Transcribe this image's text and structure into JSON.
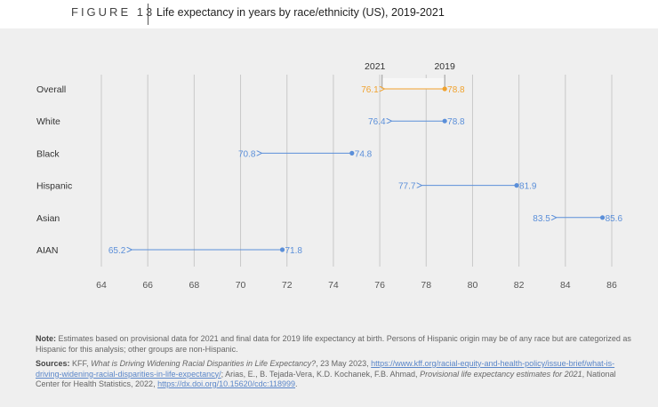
{
  "header": {
    "figure_label": "FIGURE 13",
    "title": "Life expectancy in years by race/ethnicity (US), 2019-2021"
  },
  "chart_data": {
    "type": "dumbbell",
    "title": "Life expectancy in years by race/ethnicity (US), 2019-2021",
    "xlim": [
      64,
      86
    ],
    "x_ticks": [
      "64",
      "66",
      "68",
      "70",
      "72",
      "74",
      "76",
      "78",
      "80",
      "82",
      "84",
      "86"
    ],
    "series_labels": {
      "start": "2019",
      "end": "2021"
    },
    "categories": [
      "Overall",
      "White",
      "Black",
      "Hispanic",
      "Asian",
      "AIAN"
    ],
    "values_2019": [
      78.8,
      78.8,
      74.8,
      81.9,
      85.6,
      71.8
    ],
    "values_2021": [
      76.1,
      76.4,
      70.8,
      77.7,
      83.5,
      65.2
    ],
    "labels_2019": [
      "78.8",
      "78.8",
      "74.8",
      "81.9",
      "85.6",
      "71.8"
    ],
    "labels_2021": [
      "76.1",
      "76.4",
      "70.8",
      "77.7",
      "83.5",
      "65.2"
    ],
    "highlight_category": "Overall",
    "colors": {
      "highlight": "#f0a22e",
      "series": "#5b8fd9",
      "grid": "#c8c8c8",
      "label": "#333333",
      "tick": "#555555"
    }
  },
  "notes": {
    "note_label": "Note:",
    "note_text": "Estimates based on provisional data for 2021 and final data for 2019 life expectancy at birth. Persons of Hispanic origin may be of any race but are categorized as Hispanic for this analysis; other groups are non-Hispanic.",
    "sources_label": "Sources:",
    "src_1": "KFF,",
    "src_2_italic": "What is Driving Widening Racial Disparities in Life Expectancy?",
    "src_3": ", 23 May 2023,",
    "src_link_1": "https://www.kff.org/racial-equity-and-health-policy/issue-brief/what-is-driving-widening-racial-disparities-in-life-expectancy/",
    "src_4": "; Arias, E., B. Tejada-Vera, K.D. Kochanek, F.B. Ahmad,",
    "src_5_italic": "Provisional life expectancy estimates for 2021",
    "src_6": ", National Center for Health Statistics, 2022,",
    "src_link_2": "https://dx.doi.org/10.15620/cdc:118999",
    "src_7": "."
  }
}
